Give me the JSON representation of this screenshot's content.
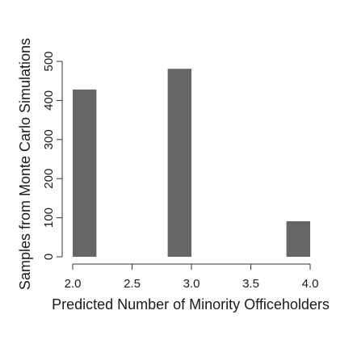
{
  "chart_data": {
    "type": "bar",
    "xlabel": "Predicted Number of Minority Officeholders",
    "ylabel": "Samples from Monte Carlo Simulations",
    "xlim": [
      2.0,
      4.0
    ],
    "ylim": [
      0,
      500
    ],
    "x_ticks": [
      "2.0",
      "2.5",
      "3.0",
      "3.5",
      "4.0"
    ],
    "y_ticks": [
      "0",
      "100",
      "200",
      "300",
      "400",
      "500"
    ],
    "bars": [
      {
        "x_start": 2.0,
        "x_end": 2.2,
        "value": 428
      },
      {
        "x_start": 2.8,
        "x_end": 3.0,
        "value": 481
      },
      {
        "x_start": 3.8,
        "x_end": 4.0,
        "value": 91
      }
    ],
    "bar_color": "#666666",
    "grid": false
  }
}
